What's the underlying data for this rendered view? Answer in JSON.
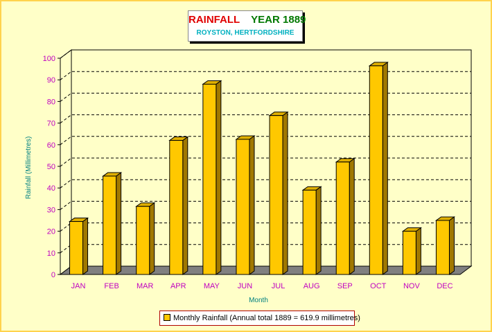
{
  "colors": {
    "background": "#ffffc8",
    "bar_front": "#ffc800",
    "bar_side": "#a07800",
    "bar_top": "#e0b000",
    "floor": "#808080",
    "axis_text": "#c000c0",
    "axis_title": "#008080",
    "title_red": "#e00000",
    "title_green": "#007800",
    "subtitle": "#00b0c0"
  },
  "title": {
    "part1": "RAINFALL",
    "part2": "YEAR 1889",
    "subtitle": "ROYSTON, HERTFORDSHIRE"
  },
  "legend": {
    "label": "Monthly Rainfall (Annual total 1889 = 619.9 millimetres)"
  },
  "chart_data": {
    "type": "bar",
    "title": "RAINFALL YEAR 1889",
    "subtitle": "ROYSTON, HERTFORDSHIRE",
    "xlabel": "Month",
    "ylabel": "Rainfall (Millimetres)",
    "categories": [
      "JAN",
      "FEB",
      "MAR",
      "APR",
      "MAY",
      "JUN",
      "JUL",
      "AUG",
      "SEP",
      "OCT",
      "NOV",
      "DEC"
    ],
    "series": [
      {
        "name": "Monthly Rainfall (Annual total 1889 = 619.9 millimetres)",
        "values": [
          24.5,
          45.5,
          31.5,
          62,
          88,
          62.5,
          73.5,
          39,
          52,
          96.5,
          20,
          25
        ]
      }
    ],
    "ylim": [
      0,
      100
    ],
    "yticks": [
      "0",
      "10",
      "20",
      "30",
      "40",
      "50",
      "60",
      "70",
      "80",
      "90",
      "100"
    ],
    "grid": true,
    "legend_position": "bottom"
  }
}
